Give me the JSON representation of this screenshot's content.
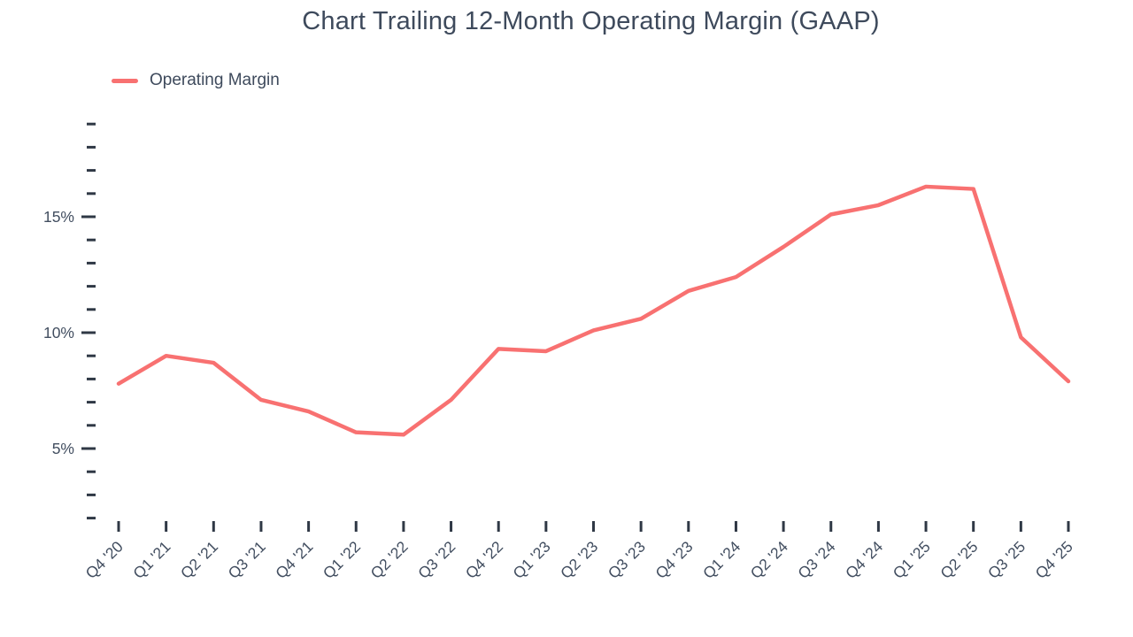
{
  "page": {
    "title": "Chart Trailing 12-Month Operating Margin (GAAP)"
  },
  "legend": {
    "label": "Operating Margin"
  },
  "colors": {
    "line": "#f87171",
    "text": "#424e60",
    "tick": "#2f3845",
    "background": "#ffffff"
  },
  "chart_data": {
    "type": "line",
    "title": "Chart Trailing 12-Month Operating Margin (GAAP)",
    "xlabel": "",
    "ylabel": "",
    "grid": false,
    "legend_position": "top-left",
    "categories": [
      "Q4 '20",
      "Q1 '21",
      "Q2 '21",
      "Q3 '21",
      "Q4 '21",
      "Q1 '22",
      "Q2 '22",
      "Q3 '22",
      "Q4 '22",
      "Q1 '23",
      "Q2 '23",
      "Q3 '23",
      "Q4 '23",
      "Q1 '24",
      "Q2 '24",
      "Q3 '24",
      "Q4 '24",
      "Q1 '25",
      "Q2 '25",
      "Q3 '25",
      "Q4 '25"
    ],
    "series": [
      {
        "name": "Operating Margin",
        "unit": "%",
        "values": [
          7.8,
          9.0,
          8.7,
          7.1,
          6.6,
          5.7,
          5.6,
          7.1,
          9.3,
          9.2,
          10.1,
          10.6,
          11.8,
          12.4,
          13.7,
          15.1,
          15.5,
          16.3,
          16.2,
          9.8,
          7.9
        ]
      }
    ],
    "y_axis": {
      "tick_min": 2,
      "tick_max": 19,
      "tick_step": 1,
      "labeled_ticks": [
        5,
        10,
        15
      ],
      "label_suffix": "%",
      "ylim": [
        2,
        19
      ]
    },
    "x_axis": {
      "label_rotation_deg": -45
    }
  }
}
